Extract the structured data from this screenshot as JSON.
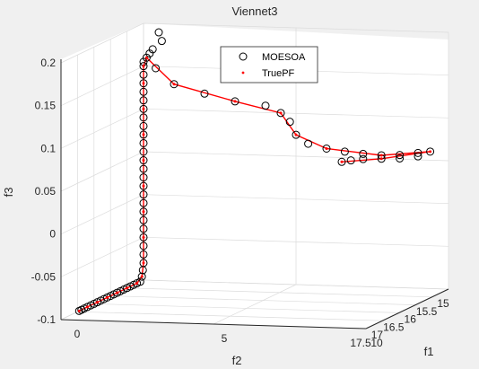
{
  "chart_data": {
    "type": "scatter",
    "view": "3d",
    "title": "Viennet3",
    "xlabel": "f1",
    "ylabel": "f2",
    "zlabel": "f3",
    "xlim": [
      0,
      10
    ],
    "ylim": [
      15,
      17.5
    ],
    "zlim": [
      -0.1,
      0.2
    ],
    "x_ticks": [
      "5",
      "10"
    ],
    "x_zero_tick": "0",
    "y_ticks": [
      "17.5",
      "17",
      "16.5",
      "16",
      "15.5",
      "15"
    ],
    "z_ticks": [
      "0.2",
      "0.15",
      "0.1",
      "0.05",
      "0",
      "-0.05",
      "-0.1"
    ],
    "grid": true,
    "legend_position": "top",
    "colors": {
      "moesoa": "#000000",
      "truepf": "#ff0000",
      "axis": "#262626",
      "grid": "#dcdcdc",
      "background": "#ffffff",
      "figure": "#f0f0f0"
    },
    "series": [
      {
        "name": "MOESOA",
        "marker": "circle-open",
        "points": [
          [
            0.0,
            16.95,
            -0.1
          ],
          [
            0.0,
            16.88,
            -0.1
          ],
          [
            0.0,
            16.8,
            -0.1
          ],
          [
            0.0,
            16.7,
            -0.1
          ],
          [
            0.0,
            16.6,
            -0.1
          ],
          [
            0.0,
            16.5,
            -0.1
          ],
          [
            0.0,
            16.4,
            -0.1
          ],
          [
            0.0,
            16.3,
            -0.1
          ],
          [
            0.0,
            16.2,
            -0.1
          ],
          [
            0.0,
            16.1,
            -0.1
          ],
          [
            0.0,
            16.0,
            -0.1
          ],
          [
            0.0,
            15.9,
            -0.1
          ],
          [
            0.0,
            15.8,
            -0.1
          ],
          [
            0.0,
            15.7,
            -0.1
          ],
          [
            0.0,
            15.6,
            -0.1
          ],
          [
            0.0,
            15.5,
            -0.1
          ],
          [
            0.0,
            15.4,
            -0.1
          ],
          [
            0.0,
            15.3,
            -0.1
          ],
          [
            0.0,
            15.2,
            -0.1
          ],
          [
            0.0,
            15.1,
            -0.1
          ],
          [
            0.0,
            15.05,
            -0.095
          ],
          [
            0.0,
            15.02,
            -0.088
          ],
          [
            0.0,
            15.0,
            -0.08
          ],
          [
            0.0,
            15.0,
            -0.07
          ],
          [
            0.0,
            15.0,
            -0.06
          ],
          [
            0.0,
            15.0,
            -0.05
          ],
          [
            0.0,
            15.0,
            -0.04
          ],
          [
            0.0,
            15.0,
            -0.03
          ],
          [
            0.0,
            15.0,
            -0.02
          ],
          [
            0.0,
            15.0,
            -0.01
          ],
          [
            0.0,
            15.0,
            0.0
          ],
          [
            0.0,
            15.0,
            0.01
          ],
          [
            0.0,
            15.0,
            0.02
          ],
          [
            0.0,
            15.0,
            0.03
          ],
          [
            0.0,
            15.0,
            0.04
          ],
          [
            0.0,
            15.0,
            0.05
          ],
          [
            0.0,
            15.0,
            0.06
          ],
          [
            0.0,
            15.0,
            0.07
          ],
          [
            0.0,
            15.0,
            0.08
          ],
          [
            0.0,
            15.0,
            0.09
          ],
          [
            0.0,
            15.0,
            0.1
          ],
          [
            0.0,
            15.0,
            0.11
          ],
          [
            0.0,
            15.0,
            0.12
          ],
          [
            0.0,
            15.0,
            0.13
          ],
          [
            0.0,
            15.0,
            0.14
          ],
          [
            0.0,
            15.0,
            0.15
          ],
          [
            0.1,
            15.0,
            0.16
          ],
          [
            0.3,
            15.0,
            0.17
          ],
          [
            0.6,
            15.0,
            0.18
          ],
          [
            0.5,
            15.0,
            0.19
          ],
          [
            0.2,
            15.0,
            0.165
          ],
          [
            0.0,
            15.0,
            0.155
          ],
          [
            0.4,
            15.0,
            0.148
          ],
          [
            1.0,
            15.0,
            0.13
          ],
          [
            2.0,
            15.0,
            0.12
          ],
          [
            3.0,
            15.0,
            0.112
          ],
          [
            4.0,
            15.0,
            0.108
          ],
          [
            4.5,
            15.0,
            0.1
          ],
          [
            4.8,
            15.0,
            0.09
          ],
          [
            5.0,
            15.0,
            0.075
          ],
          [
            5.4,
            15.0,
            0.065
          ],
          [
            6.0,
            15.0,
            0.06
          ],
          [
            6.6,
            15.0,
            0.057
          ],
          [
            7.2,
            15.0,
            0.055
          ],
          [
            7.8,
            15.0,
            0.054
          ],
          [
            8.4,
            15.0,
            0.055
          ],
          [
            9.0,
            15.0,
            0.058
          ],
          [
            9.4,
            15.0,
            0.06
          ],
          [
            9.0,
            15.0,
            0.054
          ],
          [
            8.4,
            15.0,
            0.051
          ],
          [
            7.8,
            15.0,
            0.05
          ],
          [
            7.2,
            15.0,
            0.049
          ],
          [
            6.8,
            15.0,
            0.047
          ],
          [
            6.5,
            15.0,
            0.045
          ]
        ]
      },
      {
        "name": "TruePF",
        "marker": "point",
        "points": [
          [
            0.0,
            16.95,
            -0.1
          ],
          [
            0.0,
            16.7,
            -0.1
          ],
          [
            0.0,
            16.4,
            -0.1
          ],
          [
            0.0,
            16.1,
            -0.1
          ],
          [
            0.0,
            15.8,
            -0.1
          ],
          [
            0.0,
            15.5,
            -0.1
          ],
          [
            0.0,
            15.2,
            -0.1
          ],
          [
            0.0,
            15.05,
            -0.095
          ],
          [
            0.0,
            15.0,
            -0.08
          ],
          [
            0.0,
            15.0,
            -0.05
          ],
          [
            0.0,
            15.0,
            -0.02
          ],
          [
            0.0,
            15.0,
            0.01
          ],
          [
            0.0,
            15.0,
            0.04
          ],
          [
            0.0,
            15.0,
            0.07
          ],
          [
            0.0,
            15.0,
            0.1
          ],
          [
            0.0,
            15.0,
            0.13
          ],
          [
            0.0,
            15.0,
            0.15
          ],
          [
            0.1,
            15.0,
            0.16
          ],
          [
            1.0,
            15.0,
            0.13
          ],
          [
            3.0,
            15.0,
            0.112
          ],
          [
            4.5,
            15.0,
            0.1
          ],
          [
            5.0,
            15.0,
            0.075
          ],
          [
            6.0,
            15.0,
            0.06
          ],
          [
            7.8,
            15.0,
            0.054
          ],
          [
            9.4,
            15.0,
            0.06
          ],
          [
            7.8,
            15.0,
            0.05
          ],
          [
            6.5,
            15.0,
            0.045
          ]
        ]
      }
    ]
  }
}
